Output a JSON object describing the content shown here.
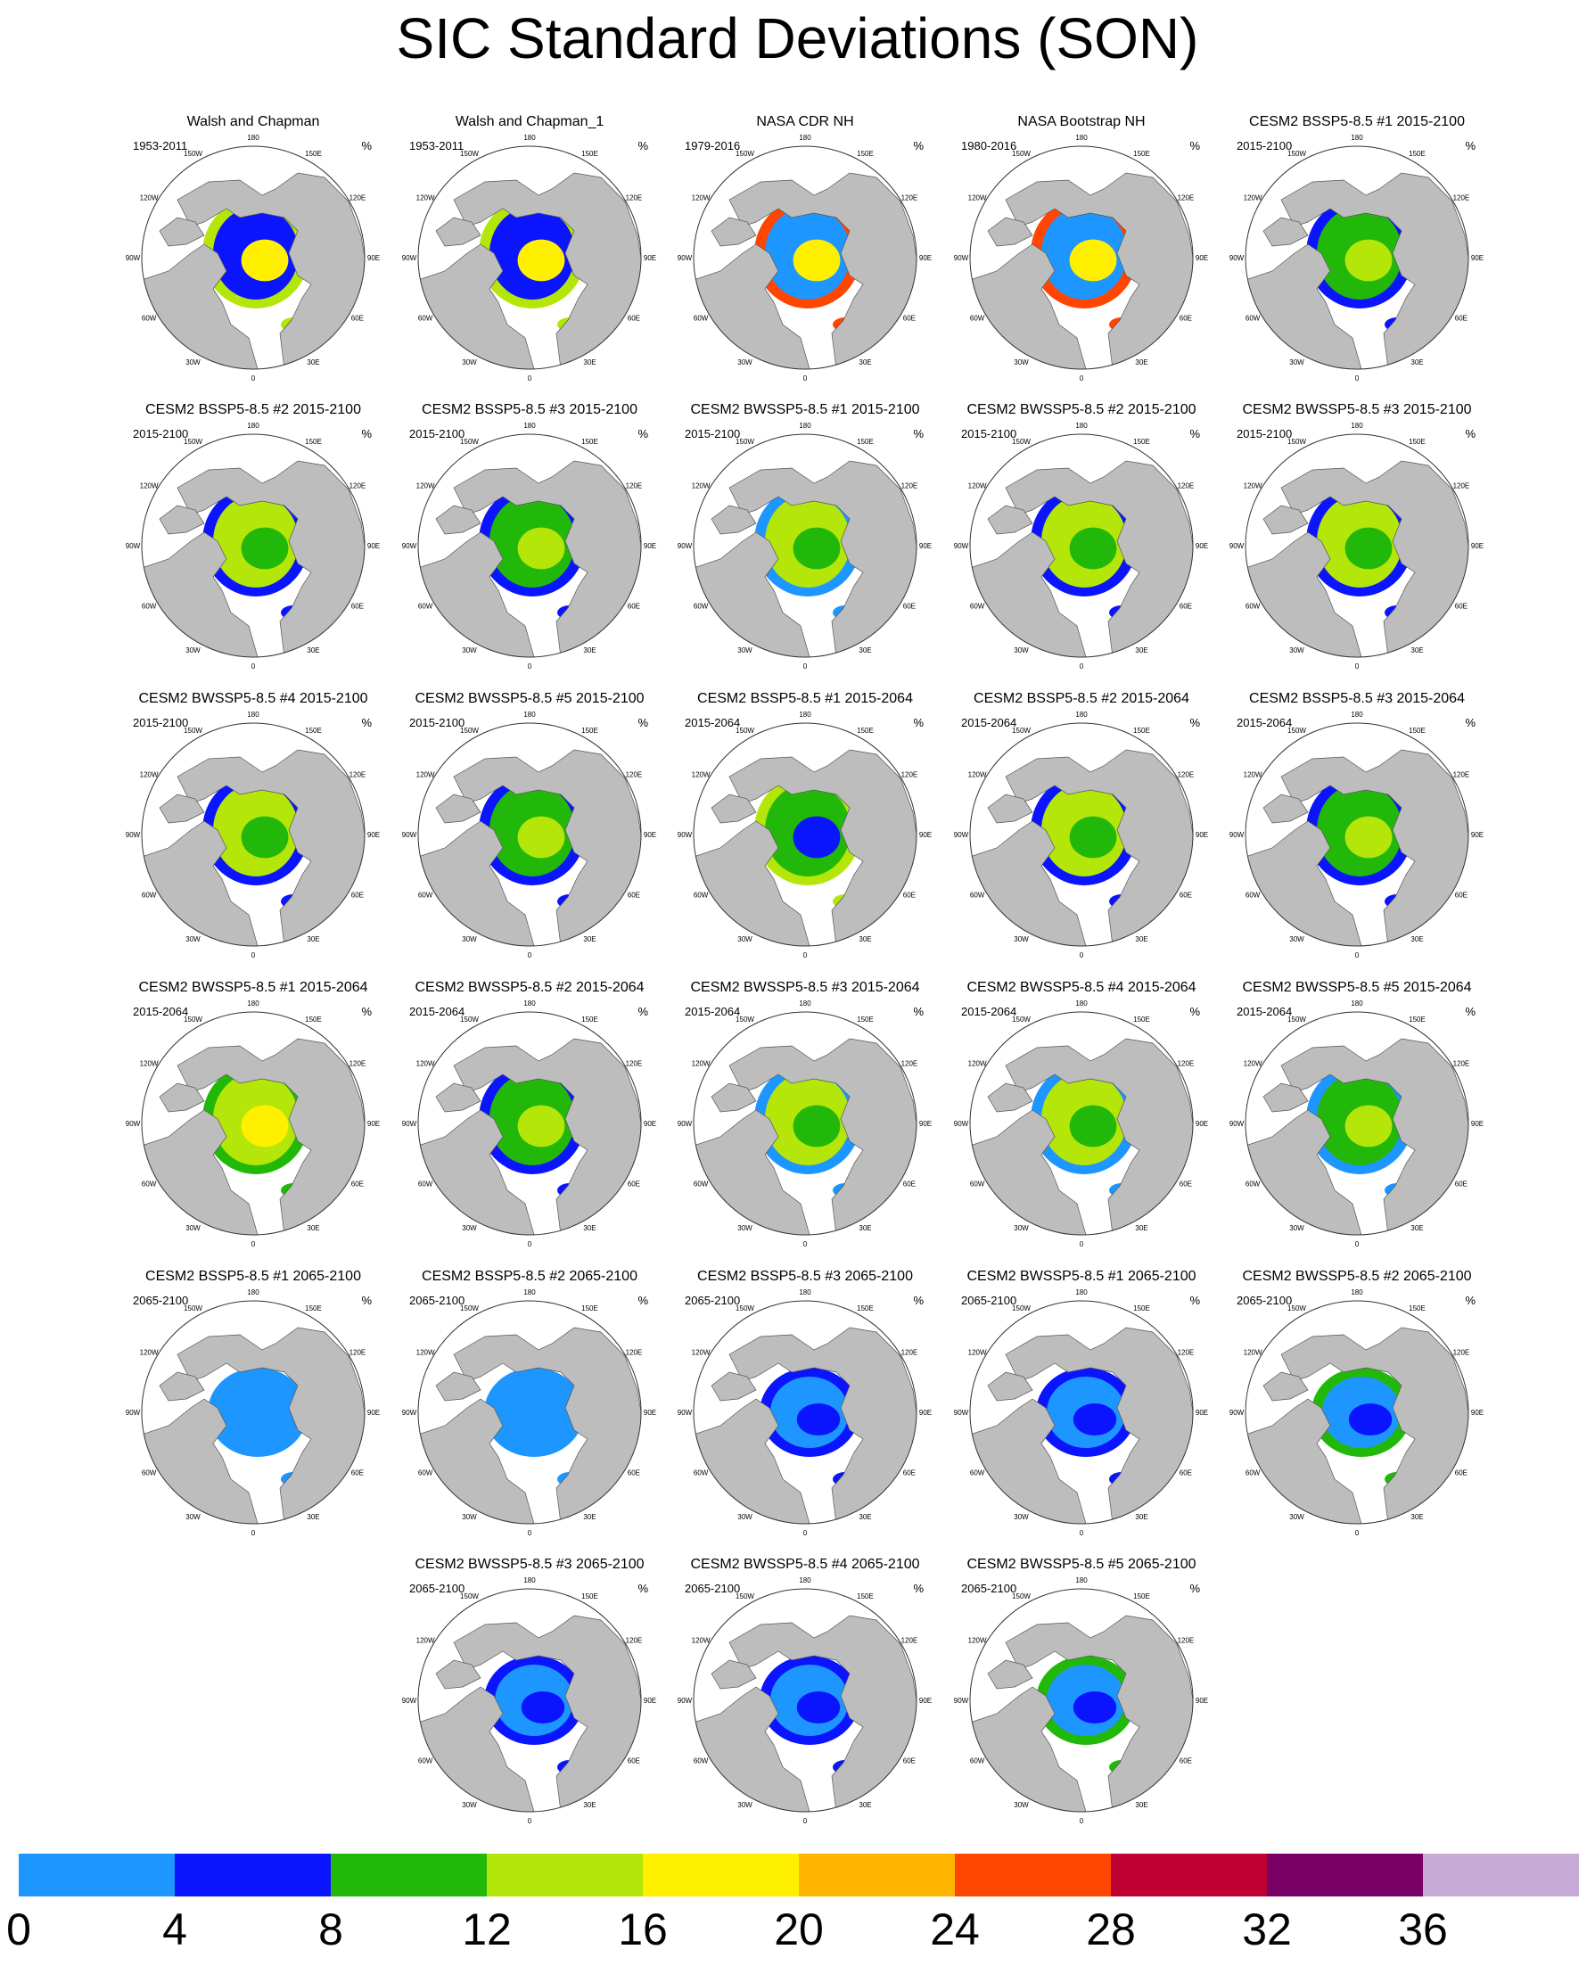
{
  "title": "SIC Standard Deviations (SON)",
  "unit": "%",
  "map_lon_labels": [
    "180",
    "150E",
    "120E",
    "90E",
    "60E",
    "30E",
    "0",
    "30W",
    "60W",
    "90W",
    "120W",
    "150W"
  ],
  "chart_data": {
    "type": "heatmap",
    "title": "SIC Standard Deviations (SON)",
    "projection": "north polar stereographic",
    "colorbar": {
      "ticks": [
        0,
        4,
        8,
        12,
        16,
        20,
        24,
        28,
        32,
        36
      ],
      "levels": [
        {
          "from": 0,
          "to": 4,
          "color": "#1e96ff"
        },
        {
          "from": 4,
          "to": 8,
          "color": "#0a14ff"
        },
        {
          "from": 8,
          "to": 12,
          "color": "#22b80a"
        },
        {
          "from": 12,
          "to": 16,
          "color": "#b4e60a"
        },
        {
          "from": 16,
          "to": 20,
          "color": "#fff000"
        },
        {
          "from": 20,
          "to": 24,
          "color": "#ffb400"
        },
        {
          "from": 24,
          "to": 28,
          "color": "#ff4600"
        },
        {
          "from": 28,
          "to": 32,
          "color": "#be0032"
        },
        {
          "from": 32,
          "to": 36,
          "color": "#780064"
        },
        {
          "from": 36,
          "to": null,
          "color": "#c8aad7"
        }
      ]
    },
    "panels": [
      {
        "title": "Walsh and Chapman",
        "period": "1953-2011",
        "dominant_levels": [
          4,
          16,
          12
        ],
        "style": "obs"
      },
      {
        "title": "Walsh and Chapman_1",
        "period": "1953-2011",
        "dominant_levels": [
          4,
          16,
          12
        ],
        "style": "obs"
      },
      {
        "title": "NASA CDR NH",
        "period": "1979-2016",
        "dominant_levels": [
          0,
          16,
          24
        ],
        "style": "obs"
      },
      {
        "title": "NASA Bootstrap NH",
        "period": "1980-2016",
        "dominant_levels": [
          0,
          16,
          24
        ],
        "style": "obs"
      },
      {
        "title": "CESM2 BSSP5-8.5 #1 2015-2100",
        "period": "2015-2100",
        "dominant_levels": [
          8,
          12,
          4
        ],
        "style": "mid"
      },
      {
        "title": "CESM2 BSSP5-8.5 #2 2015-2100",
        "period": "2015-2100",
        "dominant_levels": [
          12,
          8,
          4
        ],
        "style": "mid"
      },
      {
        "title": "CESM2 BSSP5-8.5 #3 2015-2100",
        "period": "2015-2100",
        "dominant_levels": [
          8,
          12,
          4
        ],
        "style": "mid"
      },
      {
        "title": "CESM2 BWSSP5-8.5 #1 2015-2100",
        "period": "2015-2100",
        "dominant_levels": [
          12,
          8,
          0
        ],
        "style": "mid"
      },
      {
        "title": "CESM2 BWSSP5-8.5 #2 2015-2100",
        "period": "2015-2100",
        "dominant_levels": [
          12,
          8,
          4
        ],
        "style": "mid"
      },
      {
        "title": "CESM2 BWSSP5-8.5 #3 2015-2100",
        "period": "2015-2100",
        "dominant_levels": [
          12,
          8,
          4
        ],
        "style": "mid"
      },
      {
        "title": "CESM2 BWSSP5-8.5 #4 2015-2100",
        "period": "2015-2100",
        "dominant_levels": [
          12,
          8,
          4
        ],
        "style": "mid"
      },
      {
        "title": "CESM2 BWSSP5-8.5 #5 2015-2100",
        "period": "2015-2100",
        "dominant_levels": [
          8,
          12,
          4
        ],
        "style": "mid"
      },
      {
        "title": "CESM2 BSSP5-8.5 #1 2015-2064",
        "period": "2015-2064",
        "dominant_levels": [
          8,
          4,
          12
        ],
        "style": "mid"
      },
      {
        "title": "CESM2 BSSP5-8.5 #2 2015-2064",
        "period": "2015-2064",
        "dominant_levels": [
          12,
          8,
          4
        ],
        "style": "mid"
      },
      {
        "title": "CESM2 BSSP5-8.5 #3 2015-2064",
        "period": "2015-2064",
        "dominant_levels": [
          8,
          12,
          4
        ],
        "style": "mid"
      },
      {
        "title": "CESM2 BWSSP5-8.5 #1 2015-2064",
        "period": "2015-2064",
        "dominant_levels": [
          12,
          16,
          8
        ],
        "style": "mid"
      },
      {
        "title": "CESM2 BWSSP5-8.5 #2 2015-2064",
        "period": "2015-2064",
        "dominant_levels": [
          8,
          12,
          4
        ],
        "style": "mid"
      },
      {
        "title": "CESM2 BWSSP5-8.5 #3 2015-2064",
        "period": "2015-2064",
        "dominant_levels": [
          12,
          8,
          0
        ],
        "style": "mid"
      },
      {
        "title": "CESM2 BWSSP5-8.5 #4 2015-2064",
        "period": "2015-2064",
        "dominant_levels": [
          12,
          8,
          0
        ],
        "style": "mid"
      },
      {
        "title": "CESM2 BWSSP5-8.5 #5 2015-2064",
        "period": "2015-2064",
        "dominant_levels": [
          8,
          12,
          0
        ],
        "style": "mid"
      },
      {
        "title": "CESM2 BSSP5-8.5 #1 2065-2100",
        "period": "2065-2100",
        "dominant_levels": [
          0
        ],
        "style": "late"
      },
      {
        "title": "CESM2 BSSP5-8.5 #2 2065-2100",
        "period": "2065-2100",
        "dominant_levels": [
          0
        ],
        "style": "late"
      },
      {
        "title": "CESM2 BSSP5-8.5 #3 2065-2100",
        "period": "2065-2100",
        "dominant_levels": [
          0,
          4
        ],
        "style": "late"
      },
      {
        "title": "CESM2 BWSSP5-8.5 #1 2065-2100",
        "period": "2065-2100",
        "dominant_levels": [
          0,
          4
        ],
        "style": "late"
      },
      {
        "title": "CESM2 BWSSP5-8.5 #2 2065-2100",
        "period": "2065-2100",
        "dominant_levels": [
          0,
          4,
          8
        ],
        "style": "late"
      },
      {
        "title": "CESM2 BWSSP5-8.5 #3 2065-2100",
        "period": "2065-2100",
        "dominant_levels": [
          0,
          4
        ],
        "style": "late"
      },
      {
        "title": "CESM2 BWSSP5-8.5 #4 2065-2100",
        "period": "2065-2100",
        "dominant_levels": [
          0,
          4
        ],
        "style": "late"
      },
      {
        "title": "CESM2 BWSSP5-8.5 #5 2065-2100",
        "period": "2065-2100",
        "dominant_levels": [
          0,
          4,
          8
        ],
        "style": "late"
      }
    ]
  }
}
